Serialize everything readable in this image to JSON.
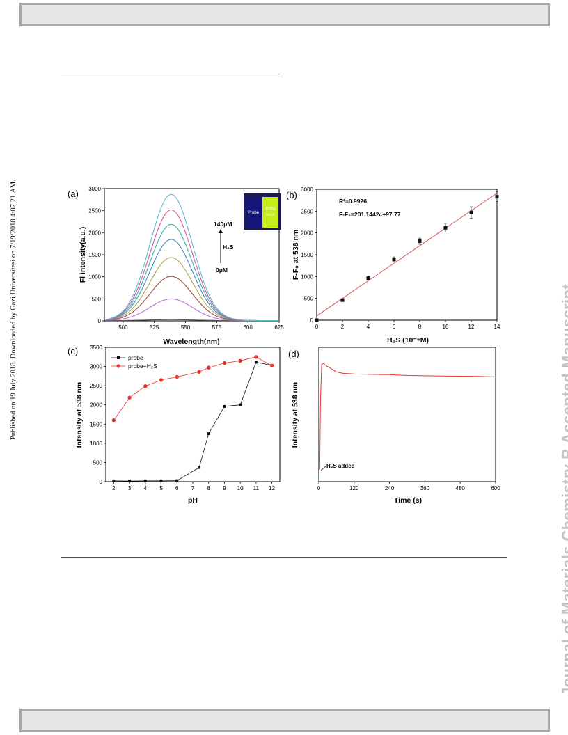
{
  "side_text_left": "Published on 19 July 2018. Downloaded by Gazi Universitesi on 7/19/2018 4:07:21 AM.",
  "side_text_right": "Journal of Materials Chemistry B Accepted Manuscript",
  "panel_labels": [
    "(a)",
    "(b)",
    "(c)",
    "(d)"
  ],
  "inset": {
    "left_label": "Probe",
    "right_label_1": "Probe",
    "right_label_2": "+H₂S"
  },
  "annotation_a": {
    "top": "140μM",
    "mid": "H₂S",
    "bottom": "0μM"
  },
  "annotation_b": {
    "r2": "R²=0.9926",
    "eq": "F-F₀=201.1442c+97.77"
  },
  "annotation_d": "H₂S added",
  "colors": {
    "red": "#e8352b",
    "black": "#111111",
    "fit": "#d9605a"
  },
  "chart_data": [
    {
      "type": "line",
      "panel": "(a)",
      "xlabel": "Wavelength(nm)",
      "ylabel": "Fl intensity(a.u.)",
      "xlim": [
        485,
        625
      ],
      "ylim": [
        0,
        3000
      ],
      "x_ticks": [
        "500",
        "525",
        "550",
        "575",
        "600",
        "625"
      ],
      "y_ticks": [
        "0",
        "500",
        "1000",
        "1500",
        "2000",
        "2500",
        "3000"
      ],
      "series": [
        {
          "peak": 20,
          "color": "#555555"
        },
        {
          "peak": 490,
          "color": "#b86fd6"
        },
        {
          "peak": 1000,
          "color": "#9b4a3c"
        },
        {
          "peak": 1430,
          "color": "#b3a44a"
        },
        {
          "peak": 1840,
          "color": "#4a86c6"
        },
        {
          "peak": 2180,
          "color": "#3fae9c"
        },
        {
          "peak": 2510,
          "color": "#d55a9e"
        },
        {
          "peak": 2860,
          "color": "#5fbcd3"
        }
      ]
    },
    {
      "type": "scatter",
      "panel": "(b)",
      "xlabel": "H₂S (10⁻⁶M)",
      "ylabel": "F-F₀ at 538 nm",
      "xlim": [
        0,
        14
      ],
      "ylim": [
        0,
        3000
      ],
      "x_ticks": [
        "0",
        "2",
        "4",
        "6",
        "8",
        "10",
        "12",
        "14"
      ],
      "y_ticks": [
        "0",
        "500",
        "1000",
        "1500",
        "2000",
        "2500",
        "3000"
      ],
      "x": [
        0,
        2,
        4,
        6,
        8,
        10,
        12,
        14
      ],
      "y": [
        0,
        460,
        960,
        1390,
        1810,
        2120,
        2470,
        2830
      ],
      "err": [
        20,
        25,
        40,
        60,
        70,
        100,
        130,
        110
      ],
      "fit": {
        "slope": 201.1442,
        "intercept": 97.77
      }
    },
    {
      "type": "line",
      "panel": "(c)",
      "xlabel": "pH",
      "ylabel": "Intensity at 538 nm",
      "xlim": [
        1.5,
        12.5
      ],
      "ylim": [
        0,
        3500
      ],
      "x_ticks": [
        "2",
        "3",
        "4",
        "5",
        "6",
        "7",
        "8",
        "9",
        "10",
        "11",
        "12"
      ],
      "y_ticks": [
        "0",
        "500",
        "1000",
        "1500",
        "2000",
        "2500",
        "3000",
        "3500"
      ],
      "legend_position": "top-left",
      "series": [
        {
          "name": "probe",
          "x": [
            2,
            3,
            4,
            5,
            6,
            7.4,
            8,
            9,
            10,
            11,
            12
          ],
          "y": [
            20,
            15,
            20,
            20,
            25,
            370,
            1250,
            1960,
            2000,
            3110,
            3030
          ]
        },
        {
          "name": "probe+H₂S",
          "x": [
            2,
            3,
            4,
            5,
            6,
            7.4,
            8,
            9,
            10,
            11,
            12
          ],
          "y": [
            1600,
            2190,
            2490,
            2650,
            2730,
            2860,
            2970,
            3090,
            3150,
            3250,
            3020
          ]
        }
      ]
    },
    {
      "type": "line",
      "panel": "(d)",
      "xlabel": "Time (s)",
      "ylabel": "Intensity at 538 nm",
      "xlim": [
        0,
        600
      ],
      "ylim": [
        0,
        3000
      ],
      "x_ticks": [
        "0",
        "120",
        "240",
        "360",
        "480",
        "600"
      ],
      "x": [
        0,
        3,
        6,
        10,
        15,
        25,
        40,
        60,
        80,
        120,
        180,
        240,
        300,
        360,
        420,
        480,
        540,
        600
      ],
      "y": [
        250,
        280,
        1900,
        2620,
        2640,
        2590,
        2530,
        2450,
        2420,
        2405,
        2395,
        2390,
        2370,
        2365,
        2360,
        2355,
        2350,
        2340
      ]
    }
  ]
}
